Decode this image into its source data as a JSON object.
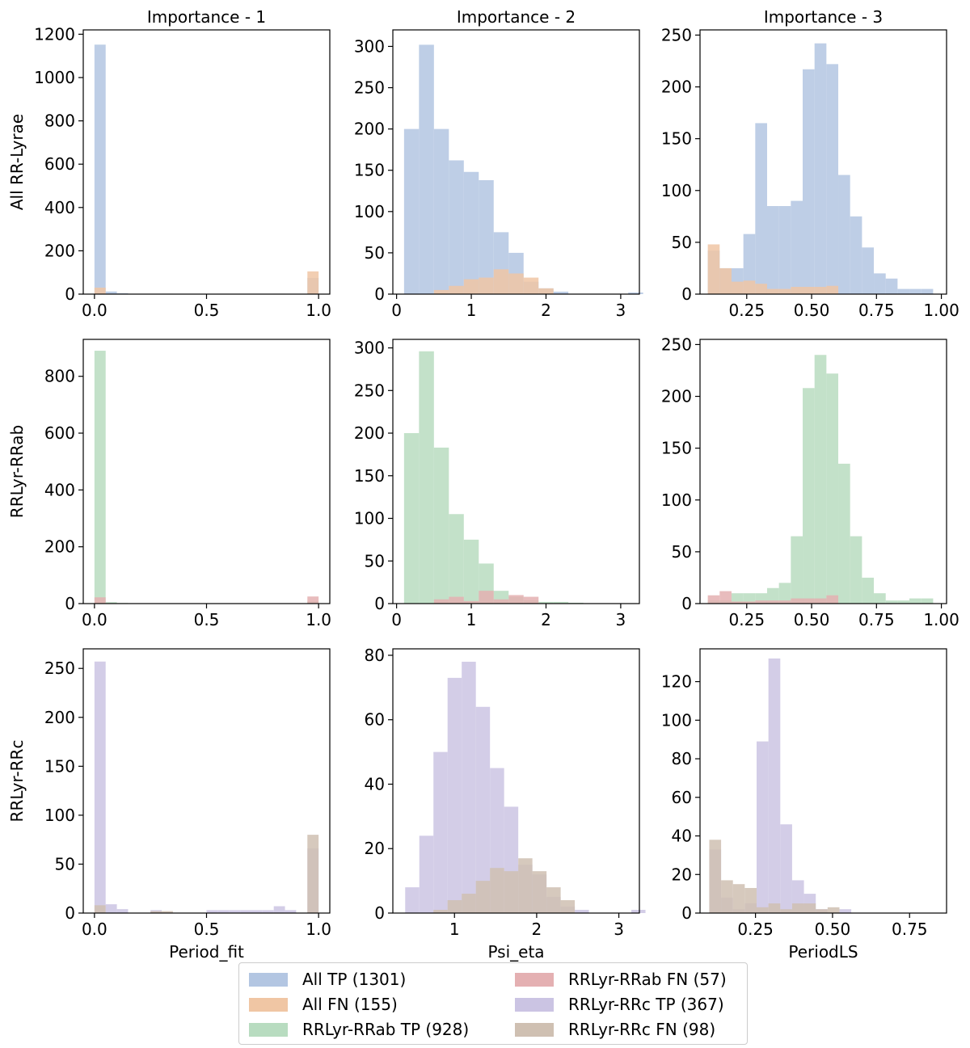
{
  "colors": {
    "all_tp": "#b3c6e2",
    "all_fn": "#f0c6a4",
    "rrab_tp": "#b8dcc0",
    "rrab_fn": "#e4b0b2",
    "rrc_tp": "#cbc4e3",
    "rrc_fn": "#cfc0b2"
  },
  "chart_data": {
    "type": "bar",
    "layout": "3x3 grid of overlaid histograms",
    "column_titles": [
      "Importance - 1",
      "Importance - 2",
      "Importance - 3"
    ],
    "row_labels": [
      "All RR-Lyrae",
      "RRLyr-RRab",
      "RRLyr-RRc"
    ],
    "xlabels": [
      "Period_fit",
      "Psi_eta",
      "PeriodLS"
    ],
    "legend": [
      {
        "key": "all_tp",
        "label": "All TP (1301)"
      },
      {
        "key": "all_fn",
        "label": "All FN (155)"
      },
      {
        "key": "rrab_tp",
        "label": "RRLyr-RRab TP (928)"
      },
      {
        "key": "rrab_fn",
        "label": "RRLyr-RRab FN (57)"
      },
      {
        "key": "rrc_tp",
        "label": "RRLyr-RRc TP (367)"
      },
      {
        "key": "rrc_fn",
        "label": "RRLyr-RRc FN (98)"
      }
    ],
    "panels": [
      {
        "xlim": [
          -0.05,
          1.05
        ],
        "ylim": [
          0,
          1220
        ],
        "xticks": [
          0.0,
          0.5,
          1.0
        ],
        "xticklabels": [
          "0.0",
          "0.5",
          "1.0"
        ],
        "yticks": [
          0,
          200,
          400,
          600,
          800,
          1000,
          1200
        ],
        "bin_start": 0.0,
        "bin_width": 0.05,
        "series": [
          {
            "key": "all_tp",
            "values": [
              1152,
              12,
              4,
              0,
              0,
              0,
              2,
              0,
              0,
              0,
              0,
              2,
              0,
              0,
              0,
              0,
              2,
              0,
              0,
              75
            ]
          },
          {
            "key": "all_fn",
            "values": [
              30,
              0,
              0,
              0,
              0,
              0,
              0,
              0,
              0,
              0,
              0,
              0,
              0,
              0,
              0,
              0,
              0,
              0,
              0,
              105
            ]
          }
        ]
      },
      {
        "xlim": [
          -0.05,
          3.25
        ],
        "ylim": [
          0,
          320
        ],
        "xticks": [
          0,
          1,
          2,
          3
        ],
        "xticklabels": [
          "0",
          "1",
          "2",
          "3"
        ],
        "yticks": [
          0,
          50,
          100,
          150,
          200,
          250,
          300
        ],
        "bin_start": 0.1,
        "bin_width": 0.2,
        "series": [
          {
            "key": "all_tp",
            "values": [
              200,
              302,
              200,
              162,
              148,
              138,
              75,
              50,
              15,
              7,
              3,
              0,
              0,
              0,
              0,
              2
            ]
          },
          {
            "key": "all_fn",
            "values": [
              0,
              0,
              5,
              10,
              18,
              20,
              30,
              25,
              20,
              7,
              0,
              0,
              0,
              0,
              0,
              0
            ]
          }
        ]
      },
      {
        "xlim": [
          0.07,
          1.02
        ],
        "ylim": [
          0,
          255
        ],
        "xticks": [
          0.25,
          0.5,
          0.75,
          1.0
        ],
        "xticklabels": [
          "0.25",
          "0.50",
          "0.75",
          "1.00"
        ],
        "yticks": [
          0,
          50,
          100,
          150,
          200,
          250
        ],
        "bin_start": 0.1,
        "bin_width": 0.0457,
        "series": [
          {
            "key": "all_tp",
            "values": [
              42,
              25,
              25,
              58,
              165,
              85,
              85,
              90,
              217,
              242,
              222,
              115,
              75,
              45,
              20,
              15,
              5,
              5,
              5
            ]
          },
          {
            "key": "all_fn",
            "values": [
              48,
              25,
              12,
              13,
              10,
              5,
              5,
              7,
              7,
              7,
              8,
              0,
              0,
              0,
              0,
              0,
              0,
              0,
              0
            ]
          }
        ]
      },
      {
        "xlim": [
          -0.05,
          1.05
        ],
        "ylim": [
          0,
          930
        ],
        "xticks": [
          0.0,
          0.5,
          1.0
        ],
        "xticklabels": [
          "0.0",
          "0.5",
          "1.0"
        ],
        "yticks": [
          0,
          200,
          400,
          600,
          800
        ],
        "bin_start": 0.0,
        "bin_width": 0.05,
        "series": [
          {
            "key": "rrab_tp",
            "values": [
              890,
              5,
              2,
              0,
              0,
              0,
              0,
              0,
              0,
              0,
              0,
              1,
              0,
              0,
              0,
              0,
              0,
              0,
              0,
              8
            ]
          },
          {
            "key": "rrab_fn",
            "values": [
              22,
              0,
              0,
              0,
              0,
              0,
              0,
              0,
              0,
              0,
              0,
              0,
              0,
              0,
              0,
              0,
              0,
              0,
              0,
              25
            ]
          }
        ]
      },
      {
        "xlim": [
          -0.05,
          3.25
        ],
        "ylim": [
          0,
          310
        ],
        "xticks": [
          0,
          1,
          2,
          3
        ],
        "xticklabels": [
          "0",
          "1",
          "2",
          "3"
        ],
        "yticks": [
          0,
          50,
          100,
          150,
          200,
          250,
          300
        ],
        "bin_start": 0.1,
        "bin_width": 0.2,
        "series": [
          {
            "key": "rrab_tp",
            "values": [
              200,
              296,
              183,
              105,
              75,
              47,
              15,
              8,
              4,
              2,
              2,
              1,
              0,
              0,
              0,
              0
            ]
          },
          {
            "key": "rrab_fn",
            "values": [
              0,
              0,
              5,
              8,
              3,
              15,
              5,
              10,
              8,
              0,
              0,
              0,
              0,
              0,
              0,
              0
            ]
          }
        ]
      },
      {
        "xlim": [
          0.07,
          1.02
        ],
        "ylim": [
          0,
          255
        ],
        "xticks": [
          0.25,
          0.5,
          0.75,
          1.0
        ],
        "xticklabels": [
          "0.25",
          "0.50",
          "0.75",
          "1.00"
        ],
        "yticks": [
          0,
          50,
          100,
          150,
          200,
          250
        ],
        "bin_start": 0.1,
        "bin_width": 0.0457,
        "series": [
          {
            "key": "rrab_tp",
            "values": [
              3,
              3,
              10,
              10,
              10,
              15,
              20,
              65,
              208,
              240,
              222,
              135,
              65,
              25,
              10,
              3,
              3,
              5,
              5
            ]
          },
          {
            "key": "rrab_fn",
            "values": [
              8,
              12,
              2,
              2,
              3,
              3,
              3,
              5,
              5,
              5,
              8,
              0,
              0,
              0,
              0,
              0,
              0,
              0,
              0
            ]
          }
        ]
      },
      {
        "xlim": [
          -0.05,
          1.05
        ],
        "ylim": [
          0,
          270
        ],
        "xticks": [
          0.0,
          0.5,
          1.0
        ],
        "xticklabels": [
          "0.0",
          "0.5",
          "1.0"
        ],
        "yticks": [
          0,
          50,
          100,
          150,
          200,
          250
        ],
        "bin_start": 0.0,
        "bin_width": 0.05,
        "series": [
          {
            "key": "rrc_tp",
            "values": [
              257,
              9,
              4,
              0,
              0,
              3,
              0,
              0,
              0,
              0,
              3,
              3,
              3,
              3,
              3,
              3,
              7,
              3,
              0,
              66
            ]
          },
          {
            "key": "rrc_fn",
            "values": [
              8,
              0,
              0,
              0,
              0,
              2,
              2,
              0,
              0,
              0,
              0,
              0,
              0,
              0,
              0,
              0,
              0,
              0,
              0,
              80
            ]
          }
        ]
      },
      {
        "xlim": [
          0.25,
          3.25
        ],
        "ylim": [
          0,
          82
        ],
        "xticks": [
          1,
          2,
          3
        ],
        "xticklabels": [
          "1",
          "2",
          "3"
        ],
        "yticks": [
          0,
          20,
          40,
          60,
          80
        ],
        "bin_start": 0.4,
        "bin_width": 0.172,
        "series": [
          {
            "key": "rrc_tp",
            "values": [
              8,
              24,
              50,
              73,
              78,
              64,
              45,
              33,
              15,
              12,
              5,
              2,
              1,
              0,
              0,
              0,
              1
            ]
          },
          {
            "key": "rrc_fn",
            "values": [
              0,
              0,
              1,
              4,
              6,
              10,
              14,
              13,
              17,
              13,
              8,
              4,
              0,
              0,
              0,
              0,
              0
            ]
          }
        ]
      },
      {
        "xlim": [
          0.07,
          0.87
        ],
        "ylim": [
          0,
          137
        ],
        "xticks": [
          0.25,
          0.5,
          0.75
        ],
        "xticklabels": [
          "0.25",
          "0.50",
          "0.75"
        ],
        "yticks": [
          0,
          20,
          40,
          60,
          80,
          100,
          120
        ],
        "bin_start": 0.1,
        "bin_width": 0.0384,
        "series": [
          {
            "key": "rrc_tp",
            "values": [
              33,
              8,
              2,
              5,
              89,
              132,
              46,
              17,
              10,
              2,
              0,
              2,
              0,
              0,
              0,
              0,
              0,
              0,
              0
            ]
          },
          {
            "key": "rrc_fn",
            "values": [
              38,
              17,
              15,
              13,
              3,
              5,
              2,
              5,
              5,
              2,
              3,
              0,
              0,
              0,
              0,
              0,
              0,
              0,
              0
            ]
          }
        ]
      }
    ]
  }
}
